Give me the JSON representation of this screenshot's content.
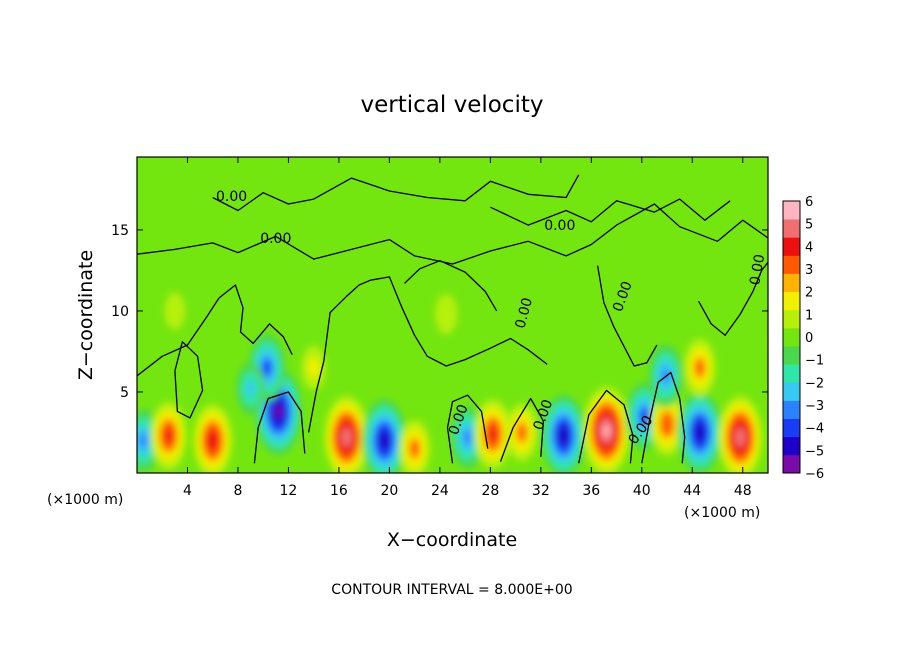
{
  "chart_data": {
    "type": "heatmap",
    "title": "vertical velocity",
    "xlabel": "X−coordinate",
    "ylabel": "Z−coordinate",
    "x_unit": "(×1000 m)",
    "xlim": [
      0,
      50
    ],
    "ylim": [
      0,
      19.5
    ],
    "x_ticks": [
      4,
      8,
      12,
      16,
      20,
      24,
      28,
      32,
      36,
      40,
      44,
      48
    ],
    "y_ticks": [
      5,
      10,
      15
    ],
    "colorbar": {
      "ticks": [
        6,
        5,
        4,
        3,
        2,
        1,
        0,
        -1,
        -2,
        -3,
        -4,
        -5,
        -6
      ],
      "tick_labels": [
        "6",
        "5",
        "4",
        "3",
        "2",
        "1",
        "0",
        "−1",
        "−2",
        "−3",
        "−4",
        "−5",
        "−6"
      ],
      "range": [
        -6,
        6
      ],
      "colors": [
        "#7a0ba8",
        "#1f00c8",
        "#1a3cf2",
        "#2b82ff",
        "#37c9f2",
        "#2fe6a8",
        "#4cd84c",
        "#74e60f",
        "#b6f00a",
        "#f0f000",
        "#ffb300",
        "#ff5a00",
        "#ee1010",
        "#f07070",
        "#ffb6c1"
      ]
    },
    "contour_label": "0.00",
    "contour_interval_text": "CONTOUR INTERVAL = 8.000E+00",
    "features": [
      {
        "x": 0.5,
        "z": 2.0,
        "w": -3.5
      },
      {
        "x": 2.5,
        "z": 2.3,
        "w": 4.0
      },
      {
        "x": 6.0,
        "z": 2.0,
        "w": 4.5
      },
      {
        "x": 11.2,
        "z": 3.8,
        "w": -6.0
      },
      {
        "x": 10.3,
        "z": 6.5,
        "w": -4.0
      },
      {
        "x": 9.0,
        "z": 5.2,
        "w": -2.5
      },
      {
        "x": 16.6,
        "z": 2.2,
        "w": 5.5
      },
      {
        "x": 19.6,
        "z": 2.0,
        "w": -5.5
      },
      {
        "x": 22.0,
        "z": 1.5,
        "w": 3.0
      },
      {
        "x": 26.2,
        "z": 2.2,
        "w": -3.5
      },
      {
        "x": 28.2,
        "z": 2.4,
        "w": 4.2
      },
      {
        "x": 30.5,
        "z": 2.5,
        "w": 3.0
      },
      {
        "x": 33.8,
        "z": 2.3,
        "w": -5.5
      },
      {
        "x": 37.2,
        "z": 2.6,
        "w": 6.0
      },
      {
        "x": 40.2,
        "z": 3.5,
        "w": -4.0
      },
      {
        "x": 42.0,
        "z": 3.0,
        "w": 3.5
      },
      {
        "x": 44.6,
        "z": 2.5,
        "w": -5.5
      },
      {
        "x": 47.8,
        "z": 2.2,
        "w": 5.5
      },
      {
        "x": 41.9,
        "z": 6.0,
        "w": -3.5
      },
      {
        "x": 44.6,
        "z": 6.5,
        "w": 3.0
      },
      {
        "x": 24.5,
        "z": 9.8,
        "w": 1.2
      },
      {
        "x": 14.0,
        "z": 6.5,
        "w": 1.6
      },
      {
        "x": 3.0,
        "z": 10.0,
        "w": 0.9
      }
    ]
  }
}
